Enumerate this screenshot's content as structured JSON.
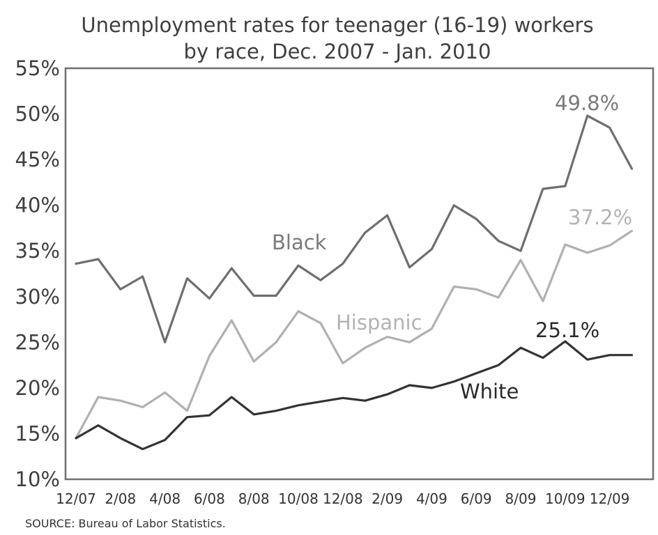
{
  "chart_data": {
    "type": "line",
    "title": [
      "Unemployment rates for teenager (16-19) workers",
      "by race, Dec. 2007 - Jan. 2010"
    ],
    "xlabel": "",
    "ylabel": "",
    "ylim": [
      10,
      55
    ],
    "yticks": [
      55,
      50,
      45,
      40,
      35,
      30,
      25,
      20,
      15,
      10
    ],
    "ytick_labels": [
      "55%",
      "50%",
      "45%",
      "40%",
      "35%",
      "30%",
      "25%",
      "20%",
      "15%",
      "10%"
    ],
    "xtick_labels": [
      "12/07",
      "2/08",
      "4/08",
      "6/08",
      "8/08",
      "10/08",
      "12/08",
      "2/09",
      "4/09",
      "6/09",
      "8/09",
      "10/09",
      "12/09"
    ],
    "x": [
      "12/07",
      "1/08",
      "2/08",
      "3/08",
      "4/08",
      "5/08",
      "6/08",
      "7/08",
      "8/08",
      "9/08",
      "10/08",
      "11/08",
      "12/08",
      "1/09",
      "2/09",
      "3/09",
      "4/09",
      "5/09",
      "6/09",
      "7/09",
      "8/09",
      "9/09",
      "10/09",
      "11/09",
      "12/09",
      "1/10"
    ],
    "grid": false,
    "series": [
      {
        "name": "Black",
        "color": "#6e6e6e",
        "values": [
          33.6,
          34.1,
          30.8,
          32.2,
          25.0,
          32.0,
          29.8,
          33.1,
          30.1,
          30.1,
          33.4,
          31.8,
          33.6,
          37.0,
          38.9,
          33.2,
          35.2,
          40.0,
          38.5,
          36.1,
          35.0,
          41.8,
          42.1,
          49.8,
          48.5,
          44.0
        ],
        "end_label": "49.8%",
        "end_label_index": 23
      },
      {
        "name": "Hispanic",
        "color": "#b0b0b0",
        "values": [
          14.5,
          19.0,
          18.6,
          17.9,
          19.5,
          17.5,
          23.5,
          27.4,
          22.9,
          25.0,
          28.4,
          27.1,
          22.7,
          24.4,
          25.6,
          25.0,
          26.5,
          31.1,
          30.8,
          29.9,
          34.0,
          29.5,
          35.7,
          34.8,
          35.6,
          37.2
        ],
        "end_label": "37.2%",
        "end_label_index": 25
      },
      {
        "name": "White",
        "color": "#333333",
        "values": [
          14.5,
          15.9,
          14.5,
          13.3,
          14.3,
          16.8,
          17.0,
          19.0,
          17.1,
          17.5,
          18.1,
          18.5,
          18.9,
          18.6,
          19.3,
          20.3,
          20.0,
          20.7,
          21.6,
          22.5,
          24.4,
          23.3,
          25.1,
          23.1,
          23.6,
          23.6
        ],
        "end_label": "25.1%",
        "end_label_index": 22
      }
    ],
    "source": "SOURCE: Bureau of Labor Statistics."
  }
}
